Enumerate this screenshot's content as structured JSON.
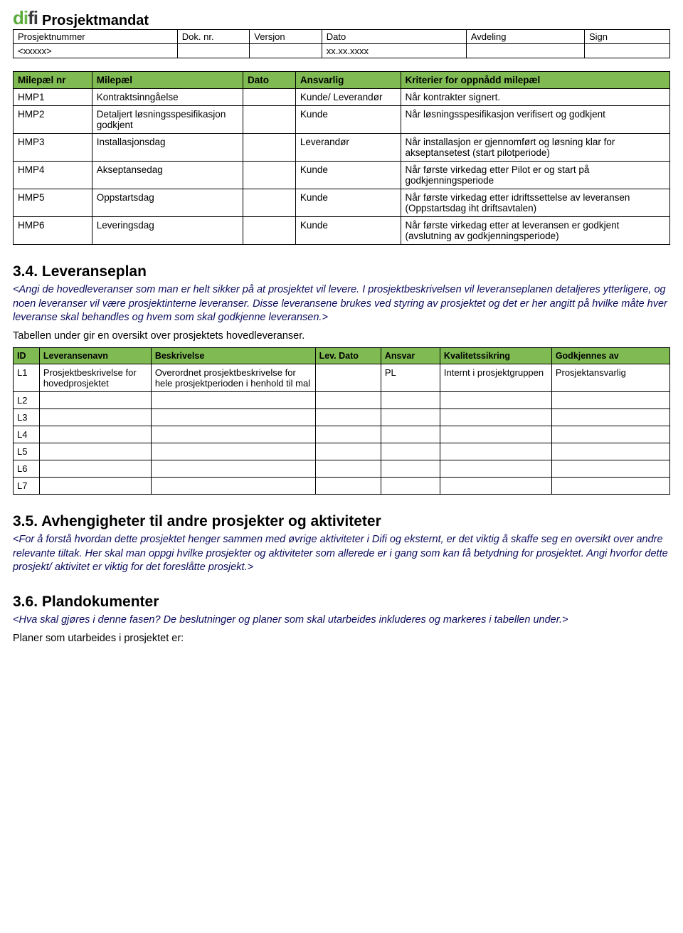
{
  "colors": {
    "header_bg": "#7fbb52",
    "border": "#000000",
    "body_italic": "#0a0b5c",
    "text": "#000000",
    "background": "#ffffff"
  },
  "typography": {
    "body_fontsize_pt": 11,
    "heading_fontsize_pt": 16,
    "table_header_fontsize_pt": 10,
    "font_family": "Arial"
  },
  "header": {
    "logo_text": "difi",
    "doc_title": "Prosjektmandat",
    "labels": {
      "prosjektnummer": "Prosjektnummer",
      "dok_nr": "Dok. nr.",
      "versjon": "Versjon",
      "dato": "Dato",
      "avdeling": "Avdeling",
      "sign": "Sign"
    },
    "values": {
      "prosjektnummer": "<xxxxx>",
      "dok_nr": "",
      "versjon": "",
      "dato": "xx.xx.xxxx",
      "avdeling": "",
      "sign": ""
    }
  },
  "milepael": {
    "columns": {
      "nr": "Milepæl nr",
      "milepael": "Milepæl",
      "dato": "Dato",
      "ansvarlig": "Ansvarlig",
      "kriterier": "Kriterier for oppnådd milepæl"
    },
    "rows": [
      {
        "nr": "HMP1",
        "m": "Kontraktsinngåelse",
        "d": "",
        "a": "Kunde/ Leverandør",
        "k": "Når kontrakter signert."
      },
      {
        "nr": "HMP2",
        "m": "Detaljert løsningsspesifikasjon godkjent",
        "d": "",
        "a": "Kunde",
        "k": "Når løsningsspesifikasjon verifisert og godkjent"
      },
      {
        "nr": "HMP3",
        "m": "Installasjonsdag",
        "d": "",
        "a": "Leverandør",
        "k": "Når installasjon er gjennomført og løsning klar for akseptansetest (start pilotperiode)"
      },
      {
        "nr": "HMP4",
        "m": "Akseptansedag",
        "d": "",
        "a": "Kunde",
        "k": "Når første virkedag etter Pilot er og start på godkjenningsperiode"
      },
      {
        "nr": "HMP5",
        "m": "Oppstartsdag",
        "d": "",
        "a": "Kunde",
        "k": "Når første virkedag etter idriftssettelse av leveransen (Oppstartsdag iht driftsavtalen)"
      },
      {
        "nr": "HMP6",
        "m": "Leveringsdag",
        "d": "",
        "a": "Kunde",
        "k": "Når første virkedag etter at leveransen er godkjent (avslutning av godkjenningsperiode)"
      }
    ]
  },
  "s34": {
    "heading": "3.4.  Leveranseplan",
    "para": "<Angi de hovedleveranser som man er helt sikker på at prosjektet vil levere. I prosjektbeskrivelsen vil leveranseplanen detaljeres ytterligere, og noen leveranser vil være prosjektinterne leveranser. Disse leveransene brukes ved styring av prosjektet og det er her angitt på hvilke måte hver leveranse skal behandles og hvem som skal godkjenne leveransen.>",
    "caption": "Tabellen under gir en oversikt over prosjektets hovedleveranser."
  },
  "leveranse": {
    "columns": {
      "id": "ID",
      "navn": "Leveransenavn",
      "beskrivelse": "Beskrivelse",
      "levdato": "Lev. Dato",
      "ansvar": "Ansvar",
      "kvalitet": "Kvalitetssikring",
      "godkjennes": "Godkjennes av"
    },
    "rows": [
      {
        "id": "L1",
        "navn": "Prosjektbeskrivelse for hovedprosjektet",
        "besk": "Overordnet prosjektbeskrivelse for hele prosjektperioden i henhold til mal",
        "dato": "",
        "ansvar": "PL",
        "kval": "Internt i prosjektgruppen",
        "god": "Prosjektansvarlig"
      },
      {
        "id": "L2",
        "navn": "",
        "besk": "",
        "dato": "",
        "ansvar": "",
        "kval": "",
        "god": ""
      },
      {
        "id": "L3",
        "navn": "",
        "besk": "",
        "dato": "",
        "ansvar": "",
        "kval": "",
        "god": ""
      },
      {
        "id": "L4",
        "navn": "",
        "besk": "",
        "dato": "",
        "ansvar": "",
        "kval": "",
        "god": ""
      },
      {
        "id": "L5",
        "navn": "",
        "besk": "",
        "dato": "",
        "ansvar": "",
        "kval": "",
        "god": ""
      },
      {
        "id": "L6",
        "navn": "",
        "besk": "",
        "dato": "",
        "ansvar": "",
        "kval": "",
        "god": ""
      },
      {
        "id": "L7",
        "navn": "",
        "besk": "",
        "dato": "",
        "ansvar": "",
        "kval": "",
        "god": ""
      }
    ]
  },
  "s35": {
    "heading": "3.5.  Avhengigheter til andre prosjekter og aktiviteter",
    "para": "<For å forstå hvordan dette prosjektet henger sammen med øvrige aktiviteter i Difi og eksternt,  er det viktig å skaffe seg en oversikt over andre relevante tiltak. Her skal man oppgi hvilke prosjekter og aktiviteter som allerede er i gang som kan få betydning for prosjektet. Angi hvorfor dette prosjekt/ aktivitet er viktig for det foreslåtte prosjekt.>"
  },
  "s36": {
    "heading": "3.6.  Plandokumenter",
    "para": "<Hva skal gjøres i denne fasen? De beslutninger og planer som skal utarbeides inkluderes og markeres i tabellen under.>",
    "footer": "Planer som utarbeides i prosjektet er:"
  }
}
